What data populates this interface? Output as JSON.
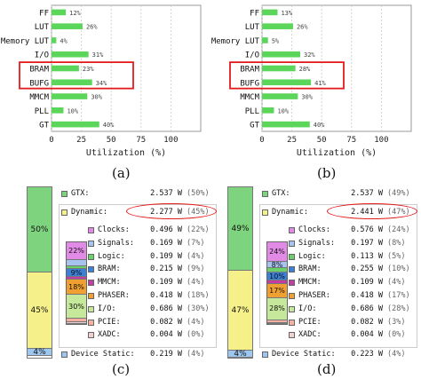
{
  "charts": [
    {
      "id": "a",
      "type": "bar",
      "caption": "(a)",
      "categories": [
        "FF",
        "LUT",
        "Memory LUT",
        "I/O",
        "BRAM",
        "BUFG",
        "MMCM",
        "PLL",
        "GT"
      ],
      "values": [
        12,
        26,
        4,
        31,
        23,
        34,
        30,
        10,
        40
      ],
      "value_labels": [
        "12%",
        "26%",
        "4%",
        "31%",
        "23%",
        "34%",
        "30%",
        "10%",
        "40%"
      ],
      "xlabel": "Utilization (%)",
      "xticks": [
        "0",
        "25",
        "50",
        "75",
        "100"
      ],
      "xlim": [
        0,
        125
      ],
      "highlight": [
        "BRAM",
        "BUFG"
      ],
      "bar_color": "#5bd65b",
      "highlight_color": "#e31a1c"
    },
    {
      "id": "b",
      "type": "bar",
      "caption": "(b)",
      "categories": [
        "FF",
        "LUT",
        "Memory LUT",
        "I/O",
        "BRAM",
        "BUFG",
        "MMCM",
        "PLL",
        "GT"
      ],
      "values": [
        13,
        26,
        5,
        32,
        28,
        41,
        30,
        10,
        40
      ],
      "value_labels": [
        "13%",
        "26%",
        "5%",
        "32%",
        "28%",
        "41%",
        "30%",
        "10%",
        "40%"
      ],
      "xlabel": "Utilization (%)",
      "xticks": [
        "0",
        "25",
        "50",
        "75",
        "100"
      ],
      "xlim": [
        0,
        125
      ],
      "highlight": [
        "BRAM",
        "BUFG"
      ],
      "bar_color": "#5bd65b",
      "highlight_color": "#e31a1c"
    }
  ],
  "power": [
    {
      "id": "c",
      "caption": "(c)",
      "stack": [
        {
          "label": "50%",
          "value": 50,
          "color": "#7ed37e"
        },
        {
          "label": "45%",
          "value": 45,
          "color": "#f5f08a"
        },
        {
          "label": "4%",
          "value": 4,
          "color": "#9ec7ef"
        }
      ],
      "gtx": {
        "label": "GTX:",
        "value": "2.537 W",
        "pct": "(50%)",
        "color": "#7ed37e"
      },
      "dynamic": {
        "label": "Dynamic:",
        "value": "2.277 W",
        "pct": "(45%)",
        "color": "#f5f08a"
      },
      "items": [
        {
          "label": "Clocks:",
          "value": "0.496 W",
          "pct": "(22%)",
          "color": "#e28be6"
        },
        {
          "label": "Signals:",
          "value": "0.169 W",
          "pct": "(7%)",
          "color": "#a7c4f0"
        },
        {
          "label": "Logic:",
          "value": "0.109 W",
          "pct": "(4%)",
          "color": "#6ad06a"
        },
        {
          "label": "BRAM:",
          "value": "0.215 W",
          "pct": "(9%)",
          "color": "#3b7fd6"
        },
        {
          "label": "MMCM:",
          "value": "0.109 W",
          "pct": "(4%)",
          "color": "#c23ca3"
        },
        {
          "label": "PHASER:",
          "value": "0.418 W",
          "pct": "(18%)",
          "color": "#f0a030"
        },
        {
          "label": "I/O:",
          "value": "0.686 W",
          "pct": "(30%)",
          "color": "#c6e89a"
        },
        {
          "label": "PCIE:",
          "value": "0.082 W",
          "pct": "(4%)",
          "color": "#f4b0a0"
        },
        {
          "label": "XADC:",
          "value": "0.004 W",
          "pct": "(0%)",
          "color": "#f0d0d0"
        }
      ],
      "mini": [
        {
          "label": "22%",
          "value": 22,
          "color": "#e28be6"
        },
        {
          "label": "",
          "value": 7,
          "color": "#a7c4f0"
        },
        {
          "label": "",
          "value": 4,
          "color": "#6ad06a"
        },
        {
          "label": "9%",
          "value": 9,
          "color": "#3b7fd6"
        },
        {
          "label": "",
          "value": 4,
          "color": "#c23ca3"
        },
        {
          "label": "18%",
          "value": 18,
          "color": "#f0a030"
        },
        {
          "label": "30%",
          "value": 30,
          "color": "#c6e89a"
        },
        {
          "label": "",
          "value": 4,
          "color": "#f4b0a0"
        },
        {
          "label": "",
          "value": 2,
          "color": "#f0d0d0"
        }
      ],
      "static": {
        "label": "Device Static:",
        "value": "0.219 W",
        "pct": "(4%)",
        "color": "#9ec7ef"
      }
    },
    {
      "id": "d",
      "caption": "(d)",
      "stack": [
        {
          "label": "49%",
          "value": 49,
          "color": "#7ed37e"
        },
        {
          "label": "47%",
          "value": 47,
          "color": "#f5f08a"
        },
        {
          "label": "4%",
          "value": 4,
          "color": "#9ec7ef"
        }
      ],
      "gtx": {
        "label": "GTX:",
        "value": "2.537 W",
        "pct": "(49%)",
        "color": "#7ed37e"
      },
      "dynamic": {
        "label": "Dynamic:",
        "value": "2.441 W",
        "pct": "(47%)",
        "color": "#f5f08a"
      },
      "items": [
        {
          "label": "Clocks:",
          "value": "0.576 W",
          "pct": "(24%)",
          "color": "#e28be6"
        },
        {
          "label": "Signals:",
          "value": "0.197 W",
          "pct": "(8%)",
          "color": "#a7c4f0"
        },
        {
          "label": "Logic:",
          "value": "0.113 W",
          "pct": "(5%)",
          "color": "#6ad06a"
        },
        {
          "label": "BRAM:",
          "value": "0.255 W",
          "pct": "(10%)",
          "color": "#3b7fd6"
        },
        {
          "label": "MMCM:",
          "value": "0.109 W",
          "pct": "(4%)",
          "color": "#c23ca3"
        },
        {
          "label": "PHASER:",
          "value": "0.418 W",
          "pct": "(17%)",
          "color": "#f0a030"
        },
        {
          "label": "I/O:",
          "value": "0.686 W",
          "pct": "(28%)",
          "color": "#c6e89a"
        },
        {
          "label": "PCIE:",
          "value": "0.082 W",
          "pct": "(3%)",
          "color": "#f4b0a0"
        },
        {
          "label": "XADC:",
          "value": "0.004 W",
          "pct": "(0%)",
          "color": "#f0d0d0"
        }
      ],
      "mini": [
        {
          "label": "24%",
          "value": 24,
          "color": "#e28be6"
        },
        {
          "label": "8%",
          "value": 8,
          "color": "#a7c4f0"
        },
        {
          "label": "",
          "value": 5,
          "color": "#6ad06a"
        },
        {
          "label": "10%",
          "value": 10,
          "color": "#3b7fd6"
        },
        {
          "label": "",
          "value": 4,
          "color": "#c23ca3"
        },
        {
          "label": "17%",
          "value": 17,
          "color": "#f0a030"
        },
        {
          "label": "28%",
          "value": 28,
          "color": "#c6e89a"
        },
        {
          "label": "",
          "value": 3,
          "color": "#f4b0a0"
        },
        {
          "label": "",
          "value": 1,
          "color": "#f0d0d0"
        }
      ],
      "static": {
        "label": "Device Static:",
        "value": "0.223 W",
        "pct": "(4%)",
        "color": "#9ec7ef"
      }
    }
  ]
}
